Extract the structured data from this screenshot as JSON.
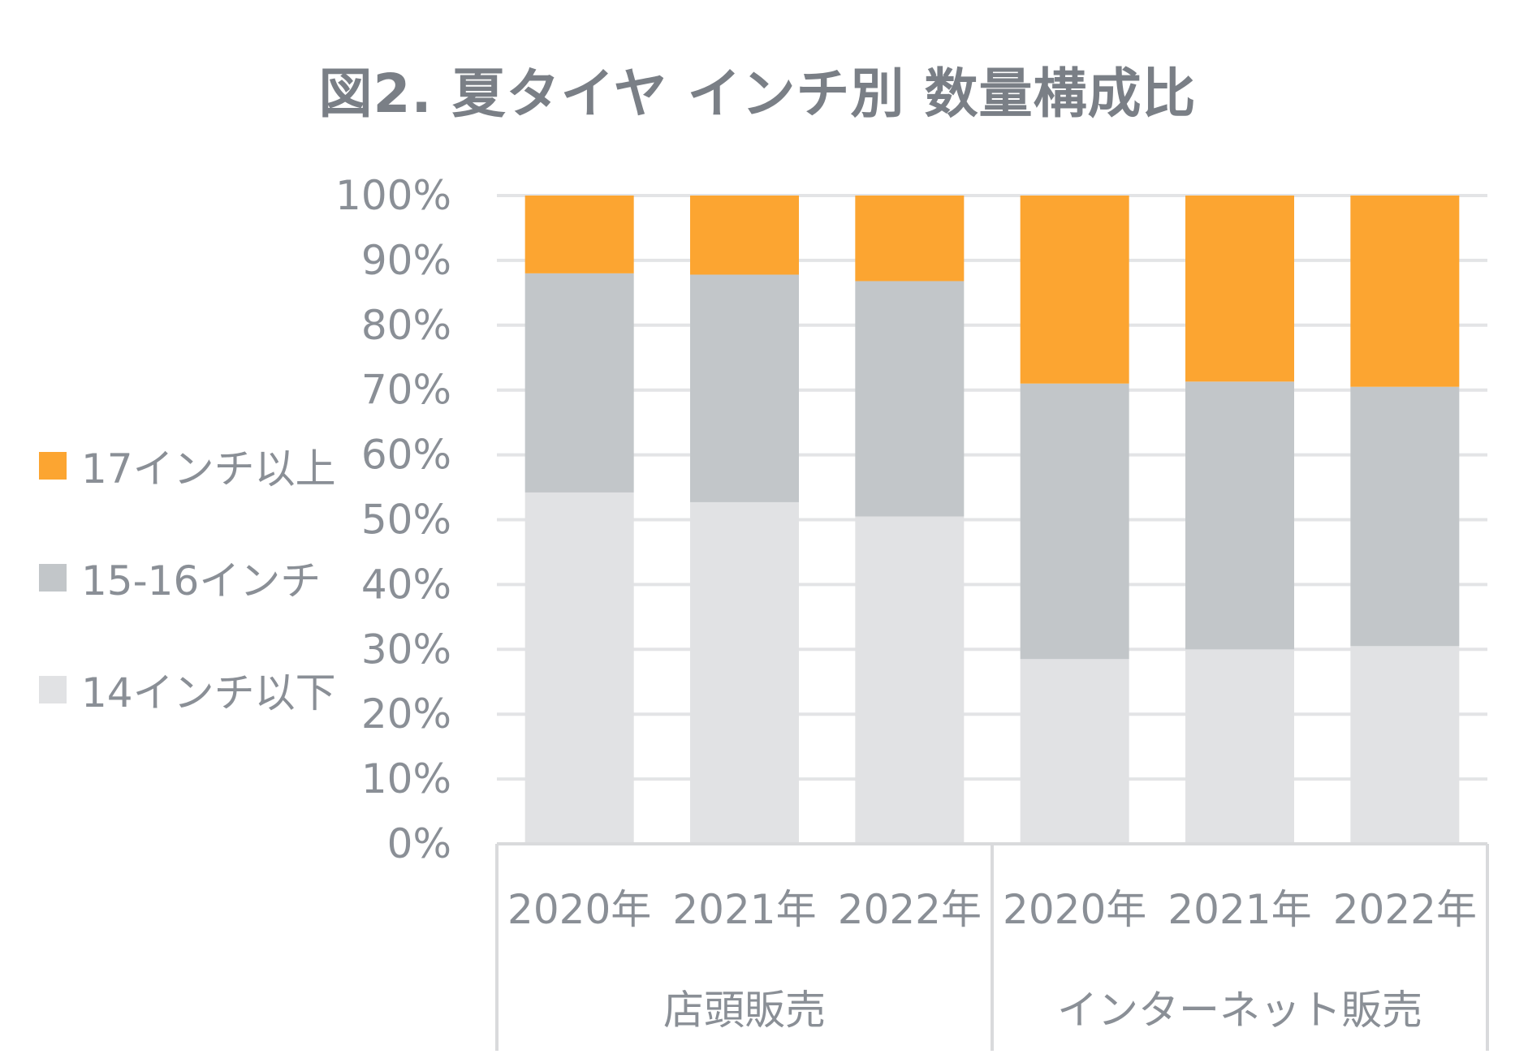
{
  "chart_data": {
    "type": "bar",
    "stacked": true,
    "title": "図2. 夏タイヤ インチ別 数量構成比",
    "ylim": [
      0,
      100
    ],
    "yticks": [
      "0%",
      "10%",
      "20%",
      "30%",
      "40%",
      "50%",
      "60%",
      "70%",
      "80%",
      "90%",
      "100%"
    ],
    "groups": [
      "店頭販売",
      "インターネット販売"
    ],
    "categories": [
      "2020年",
      "2021年",
      "2022年",
      "2020年",
      "2021年",
      "2022年"
    ],
    "series": [
      {
        "name": "14インチ以下",
        "color": "#e1e2e4",
        "values": [
          54.2,
          52.7,
          50.5,
          28.5,
          30.0,
          30.5
        ]
      },
      {
        "name": "15-16インチ",
        "color": "#c2c6c9",
        "values": [
          33.8,
          35.1,
          36.3,
          42.5,
          41.3,
          40.0
        ]
      },
      {
        "name": "17インチ以上",
        "color": "#fca531",
        "values": [
          12.0,
          12.2,
          13.2,
          29.0,
          28.7,
          29.5
        ]
      }
    ],
    "legend": "left",
    "grid": true
  }
}
